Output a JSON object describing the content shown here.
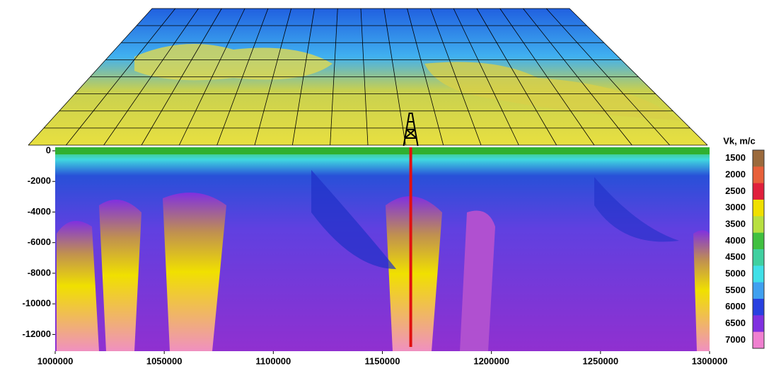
{
  "chart_data": {
    "type": "section",
    "colorbar_title": "Vk, m/c",
    "xlim": [
      1000000,
      1300000
    ],
    "xticks": [
      1000000,
      1050000,
      1100000,
      1150000,
      1200000,
      1250000,
      1300000
    ],
    "ylim": [
      -13000,
      0
    ],
    "yticks": [
      0,
      -2000,
      -4000,
      -6000,
      -8000,
      -10000,
      -12000
    ],
    "well_x": 1163000,
    "colorbar_ticks": [
      1500,
      2000,
      2500,
      3000,
      3500,
      4000,
      4500,
      5000,
      5500,
      6000,
      6500,
      7000
    ],
    "colorbar_colors": [
      "#9b6a3c",
      "#e8603a",
      "#e0203c",
      "#f0e000",
      "#b8e040",
      "#40c040",
      "#40d0a0",
      "#40e0e8",
      "#40a0f0",
      "#2840e0",
      "#8030e0",
      "#f080d0"
    ]
  }
}
